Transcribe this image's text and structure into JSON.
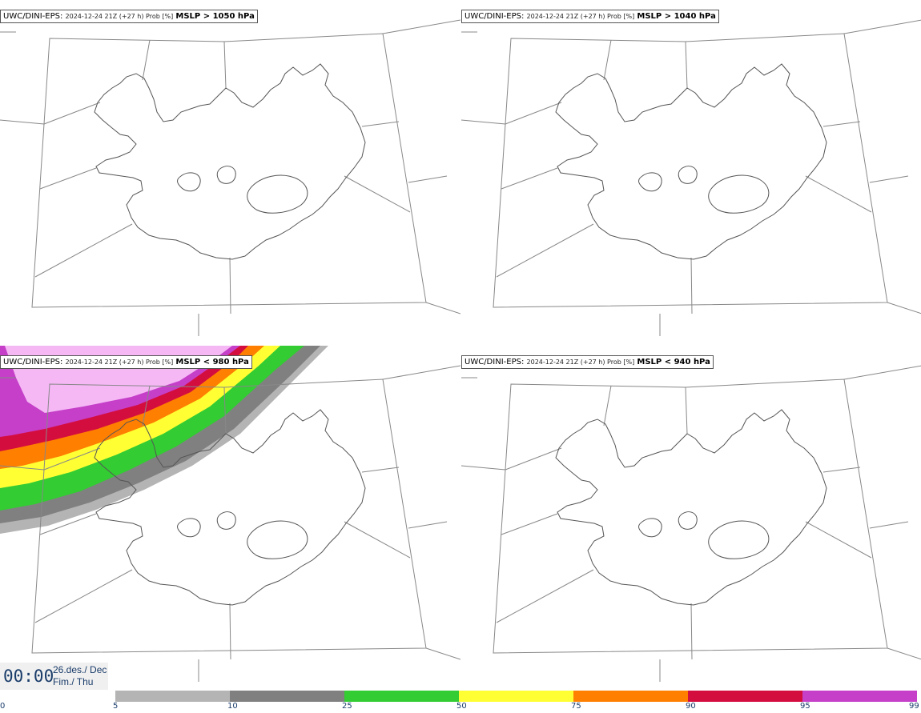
{
  "panels": [
    {
      "model": "UWC/DINI-EPS",
      "run": "2024-12-24 21Z (+27 h) Prob [%]",
      "variable": "MSLP > 1050 hPa"
    },
    {
      "model": "UWC/DINI-EPS",
      "run": "2024-12-24 21Z (+27 h) Prob [%]",
      "variable": "MSLP > 1040 hPa"
    },
    {
      "model": "UWC/DINI-EPS",
      "run": "2024-12-24 21Z (+27 h) Prob [%]",
      "variable": "MSLP < 980 hPa"
    },
    {
      "model": "UWC/DINI-EPS",
      "run": "2024-12-24 21Z (+27 h) Prob [%]",
      "variable": "MSLP < 940 hPa"
    }
  ],
  "time": {
    "clock": "00:00",
    "date_line1": "26.des./ Dec",
    "date_line2": "Fim./ Thu"
  },
  "legend": {
    "ticks": [
      "0",
      "5",
      "10",
      "25",
      "50",
      "75",
      "90",
      "95",
      "99"
    ],
    "colors": [
      "#ffffff",
      "#b4b4b4",
      "#808080",
      "#33cc33",
      "#ffff33",
      "#ff7f00",
      "#d40d3f",
      "#c53fc8",
      "#f5b8f5"
    ]
  }
}
